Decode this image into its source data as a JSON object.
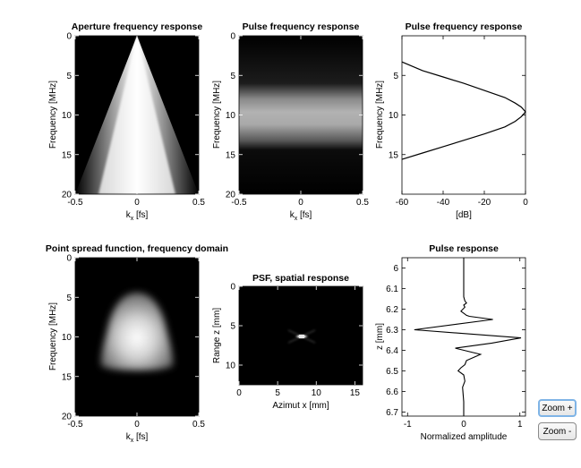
{
  "chart_data": [
    {
      "type": "heatmap",
      "title": "Aperture frequency response",
      "xlabel": "k_x [fs]",
      "ylabel": "Frequency [MHz]",
      "xlim": [
        -0.5,
        0.5
      ],
      "ylim": [
        0,
        20
      ],
      "y_reversed": true,
      "xticks": [
        "-0.5",
        "0",
        "0.5"
      ],
      "yticks": [
        "0",
        "5",
        "10",
        "15",
        "20"
      ],
      "colormap": "gray",
      "description_values": {
        "cone_apex": [
          0,
          0
        ],
        "cone_half_width_at_20MHz": 0.5
      }
    },
    {
      "type": "heatmap",
      "title": "Pulse frequency response",
      "xlabel": "k_x [fs]",
      "ylabel": "Frequency [MHz]",
      "xlim": [
        -0.5,
        0.5
      ],
      "ylim": [
        0,
        20
      ],
      "y_reversed": true,
      "xticks": [
        "-0.5",
        "0",
        "0.5"
      ],
      "yticks": [
        "0",
        "5",
        "10",
        "15",
        "20"
      ],
      "colormap": "gray",
      "description_values": {
        "band_center_MHz": 9.6,
        "band_sigma_MHz": 2.4
      }
    },
    {
      "type": "line",
      "title": "Pulse frequency response",
      "xlabel": "[dB]",
      "ylabel": "Frequency [MHz]",
      "xlim": [
        -60,
        0
      ],
      "ylim": [
        0,
        20
      ],
      "y_reversed": true,
      "xticks": [
        "-60",
        "-40",
        "-20",
        "0"
      ],
      "yticks": [
        "5",
        "10",
        "15"
      ],
      "series": [
        {
          "x": [
            -60,
            -50,
            -40,
            -30,
            -20,
            -10,
            -5,
            -2,
            0,
            -2,
            -5,
            -10,
            -20,
            -30,
            -40,
            -50,
            -60
          ],
          "y": [
            3.3,
            4.4,
            5.2,
            6.0,
            6.9,
            7.8,
            8.5,
            9.0,
            9.6,
            10.2,
            10.8,
            11.5,
            12.4,
            13.2,
            14.0,
            14.8,
            15.6
          ]
        }
      ]
    },
    {
      "type": "heatmap",
      "title": "Point spread function, frequency domain",
      "xlabel": "k_x [fs]",
      "ylabel": "Frequency [MHz]",
      "xlim": [
        -0.5,
        0.5
      ],
      "ylim": [
        0,
        20
      ],
      "y_reversed": true,
      "xticks": [
        "-0.5",
        "0",
        "0.5"
      ],
      "yticks": [
        "0",
        "5",
        "10",
        "15",
        "20"
      ],
      "colormap": "gray"
    },
    {
      "type": "heatmap",
      "title": "PSF, spatial response",
      "xlabel": "Azimut x [mm]",
      "ylabel": "Range z [mm]",
      "xlim": [
        0,
        16
      ],
      "ylim": [
        0,
        12.5
      ],
      "y_reversed": true,
      "xticks": [
        "0",
        "5",
        "10",
        "15"
      ],
      "yticks": [
        "0",
        "5",
        "10"
      ],
      "colormap": "gray",
      "description_values": {
        "peak_x_mm": 7.9,
        "peak_z_mm": 6.3
      }
    },
    {
      "type": "line",
      "title": "Pulse response",
      "xlabel": "Normalized amplitude",
      "ylabel": "z [mm]",
      "xlim": [
        -1.1,
        1.1
      ],
      "ylim": [
        5.95,
        6.72
      ],
      "y_reversed": true,
      "xticks": [
        "-1",
        "0",
        "1"
      ],
      "yticks": [
        "6",
        "6.1",
        "6.2",
        "6.3",
        "6.4",
        "6.5",
        "6.6",
        "6.7"
      ],
      "series": [
        {
          "x": [
            0,
            0,
            0,
            0,
            0.02,
            0.05,
            0.0,
            0.02,
            -0.05,
            0.0,
            0.05,
            0.1,
            0.52,
            -0.88,
            1.02,
            0.5,
            -0.15,
            0.3,
            0.05,
            0.02,
            -0.05,
            -0.1,
            0.0,
            0.02,
            -0.02,
            0.0,
            0.0
          ],
          "y": [
            5.95,
            6.05,
            6.1,
            6.14,
            6.16,
            6.17,
            6.18,
            6.19,
            6.21,
            6.22,
            6.23,
            6.235,
            6.25,
            6.3,
            6.34,
            6.365,
            6.39,
            6.42,
            6.45,
            6.47,
            6.485,
            6.5,
            6.52,
            6.55,
            6.58,
            6.65,
            6.72
          ]
        }
      ]
    }
  ],
  "controls": {
    "zoom_in_label": "Zoom +",
    "zoom_out_label": "Zoom -"
  }
}
